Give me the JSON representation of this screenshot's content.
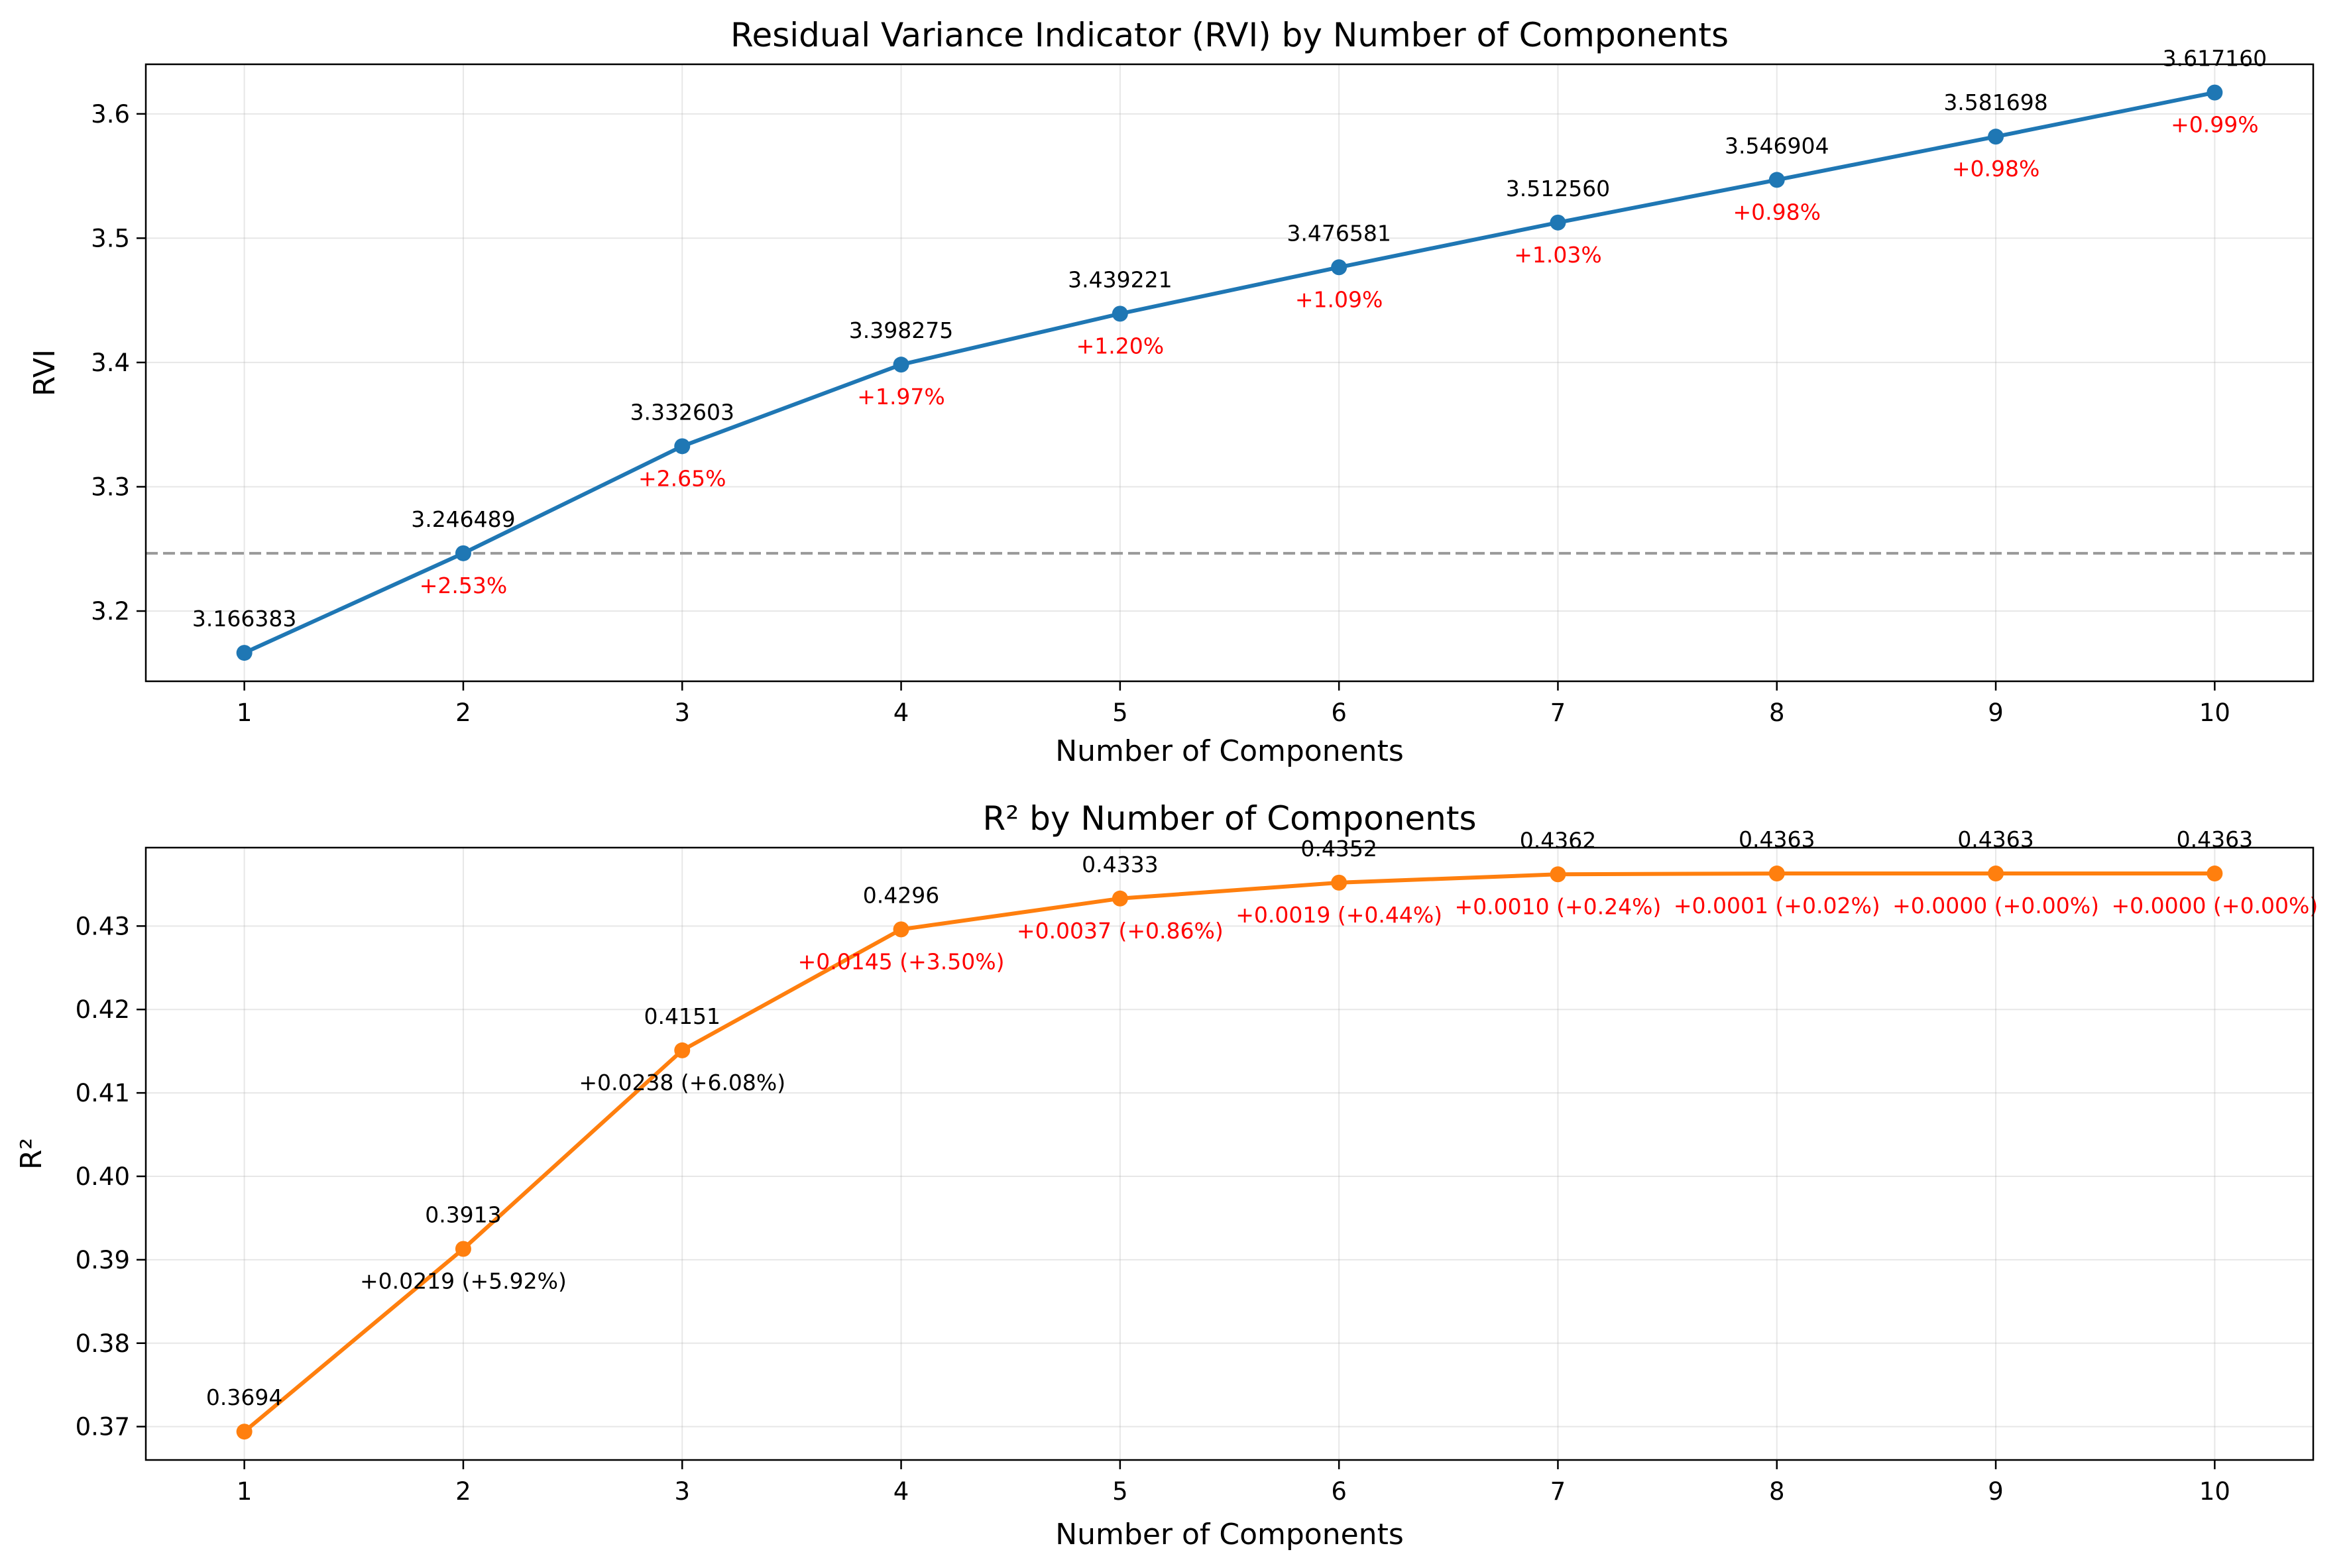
{
  "chart_data": [
    {
      "type": "line",
      "title": "Residual Variance Indicator (RVI) by Number of Components",
      "xlabel": "Number of Components",
      "ylabel": "RVI",
      "x": [
        1,
        2,
        3,
        4,
        5,
        6,
        7,
        8,
        9,
        10
      ],
      "xlim": [
        0.55,
        10.45
      ],
      "ylim": [
        3.1435,
        3.6399
      ],
      "yticks": [
        3.2,
        3.3,
        3.4,
        3.5,
        3.6
      ],
      "ytick_labels": [
        "3.2",
        "3.3",
        "3.4",
        "3.5",
        "3.6"
      ],
      "grid": true,
      "series": [
        {
          "values": [
            3.166383,
            3.246489,
            3.332603,
            3.398275,
            3.439221,
            3.476581,
            3.51256,
            3.546904,
            3.581698,
            3.61716
          ],
          "color": "#1f77b4",
          "value_labels": [
            "3.166383",
            "3.246489",
            "3.332603",
            "3.398275",
            "3.439221",
            "3.476581",
            "3.512560",
            "3.546904",
            "3.581698",
            "3.617160"
          ]
        }
      ],
      "annotations": [
        {
          "x": 2,
          "text": "+2.53%",
          "color": "#ff0000"
        },
        {
          "x": 3,
          "text": "+2.65%",
          "color": "#ff0000"
        },
        {
          "x": 4,
          "text": "+1.97%",
          "color": "#ff0000"
        },
        {
          "x": 5,
          "text": "+1.20%",
          "color": "#ff0000"
        },
        {
          "x": 6,
          "text": "+1.09%",
          "color": "#ff0000"
        },
        {
          "x": 7,
          "text": "+1.03%",
          "color": "#ff0000"
        },
        {
          "x": 8,
          "text": "+0.98%",
          "color": "#ff0000"
        },
        {
          "x": 9,
          "text": "+0.98%",
          "color": "#ff0000"
        },
        {
          "x": 10,
          "text": "+0.99%",
          "color": "#ff0000"
        }
      ],
      "reference_line": {
        "y": 3.246489,
        "style": "dashed",
        "color": "#999999"
      }
    },
    {
      "type": "line",
      "title": "R² by Number of Components",
      "xlabel": "Number of Components",
      "ylabel": "R²",
      "x": [
        1,
        2,
        3,
        4,
        5,
        6,
        7,
        8,
        9,
        10
      ],
      "xlim": [
        0.55,
        10.45
      ],
      "ylim": [
        0.366,
        0.4394
      ],
      "yticks": [
        0.37,
        0.38,
        0.39,
        0.4,
        0.41,
        0.42,
        0.43
      ],
      "ytick_labels": [
        "0.37",
        "0.38",
        "0.39",
        "0.40",
        "0.41",
        "0.42",
        "0.43"
      ],
      "grid": true,
      "series": [
        {
          "values": [
            0.3694,
            0.3913,
            0.4151,
            0.4296,
            0.4333,
            0.4352,
            0.4362,
            0.4363,
            0.4363,
            0.4363
          ],
          "color": "#ff7f0e",
          "value_labels": [
            "0.3694",
            "0.3913",
            "0.4151",
            "0.4296",
            "0.4333",
            "0.4352",
            "0.4362",
            "0.4363",
            "0.4363",
            "0.4363"
          ]
        }
      ],
      "annotations": [
        {
          "x": 2,
          "text": "+0.0219 (+5.92%)",
          "color": "#000000"
        },
        {
          "x": 3,
          "text": "+0.0238 (+6.08%)",
          "color": "#000000"
        },
        {
          "x": 4,
          "text": "+0.0145 (+3.50%)",
          "color": "#ff0000"
        },
        {
          "x": 5,
          "text": "+0.0037 (+0.86%)",
          "color": "#ff0000"
        },
        {
          "x": 6,
          "text": "+0.0019 (+0.44%)",
          "color": "#ff0000"
        },
        {
          "x": 7,
          "text": "+0.0010 (+0.24%)",
          "color": "#ff0000"
        },
        {
          "x": 8,
          "text": "+0.0001 (+0.02%)",
          "color": "#ff0000"
        },
        {
          "x": 9,
          "text": "+0.0000 (+0.00%)",
          "color": "#ff0000"
        },
        {
          "x": 10,
          "text": "+0.0000 (+0.00%)",
          "color": "#ff0000"
        }
      ]
    }
  ]
}
